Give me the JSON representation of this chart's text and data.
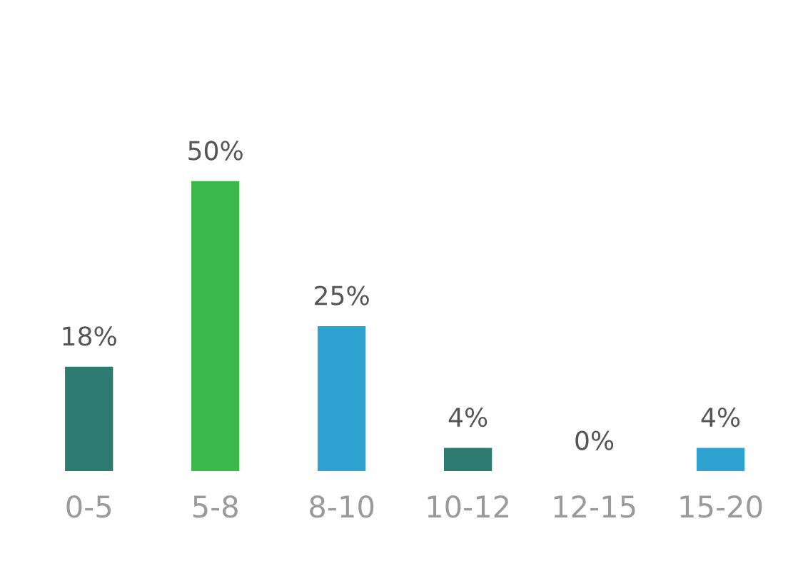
{
  "chart_data": {
    "type": "bar",
    "categories": [
      "0-5",
      "5-8",
      "8-10",
      "10-12",
      "12-15",
      "15-20"
    ],
    "values": [
      18,
      50,
      25,
      4,
      0,
      4
    ],
    "value_labels": [
      "18%",
      "50%",
      "25%",
      "4%",
      "0%",
      "4%"
    ],
    "colors": [
      "#2d7a70",
      "#3bb84a",
      "#2ea3d2",
      "#2d7a70",
      "#3bb84a",
      "#2ea3d2"
    ],
    "tick_labels": "x",
    "grid": false,
    "legend": false
  }
}
